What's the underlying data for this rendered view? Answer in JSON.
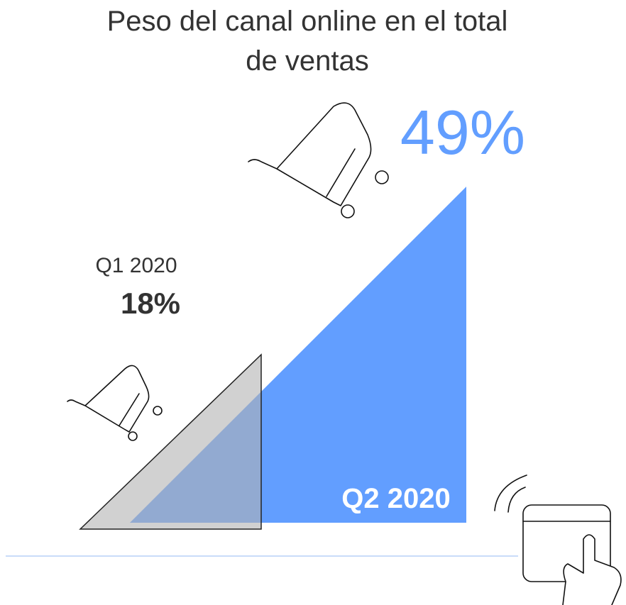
{
  "chart_data": {
    "type": "triangle",
    "title": "Peso del canal online en el total de ventas",
    "categories": [
      "Q1 2020",
      "Q2 2020"
    ],
    "values": [
      18,
      49
    ],
    "value_labels": [
      "18%",
      "49%"
    ],
    "colors": [
      "#b3b3b3",
      "#629eff"
    ]
  }
}
